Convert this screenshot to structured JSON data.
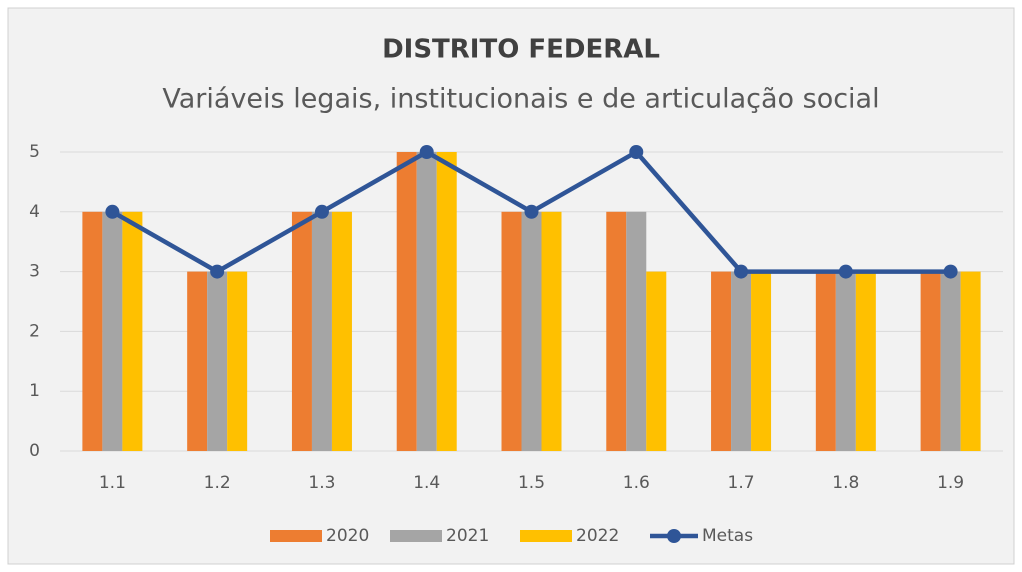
{
  "chart_data": {
    "type": "bar",
    "title": "DISTRITO FEDERAL",
    "subtitle": "Variáveis legais, institucionais e de articulação social",
    "categories": [
      "1.1",
      "1.2",
      "1.3",
      "1.4",
      "1.5",
      "1.6",
      "1.7",
      "1.8",
      "1.9"
    ],
    "series": [
      {
        "name": "2020",
        "color": "#ed7d31",
        "values": [
          4,
          3,
          4,
          5,
          4,
          4,
          3,
          3,
          3
        ]
      },
      {
        "name": "2021",
        "color": "#a5a5a5",
        "values": [
          4,
          3,
          4,
          5,
          4,
          4,
          3,
          3,
          3
        ]
      },
      {
        "name": "2022",
        "color": "#ffc000",
        "values": [
          4,
          3,
          4,
          5,
          4,
          3,
          3,
          3,
          3
        ]
      },
      {
        "name": "Metas",
        "color": "#2f5597",
        "type": "line",
        "values": [
          4,
          3,
          4,
          5,
          4,
          5,
          3,
          3,
          3
        ]
      }
    ],
    "ylim": [
      0,
      5
    ],
    "yticks": [
      0,
      1,
      2,
      3,
      4,
      5
    ],
    "grid": true,
    "legend": "bottom"
  }
}
